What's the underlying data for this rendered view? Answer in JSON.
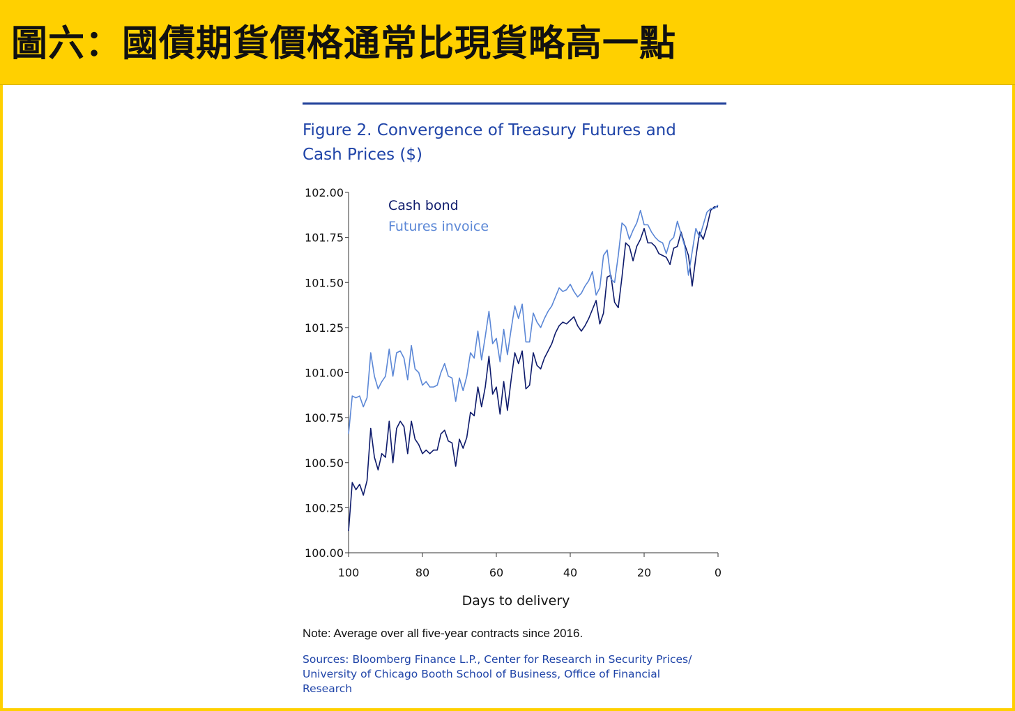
{
  "banner": {
    "title": "圖六：國債期貨價格通常比現貨略高一點"
  },
  "figure": {
    "title_line1": "Figure 2. Convergence of Treasury Futures and",
    "title_line2": "Cash Prices ($)",
    "note": "Note: Average over all five-year contracts since 2016.",
    "sources_line1": "Sources: Bloomberg Finance L.P., Center for Research in Security Prices/",
    "sources_line2": "University of Chicago Booth School of Business, Office of Financial",
    "sources_line3": "Research"
  },
  "colors": {
    "banner": "#FFD000",
    "title_blue": "#1f44a8",
    "cash_bond": "#0d1a6b",
    "futures_invoice": "#5b87d6"
  },
  "chart_data": {
    "type": "line",
    "title": "Figure 2. Convergence of Treasury Futures and Cash Prices ($)",
    "xlabel": "Days to delivery",
    "ylabel": "",
    "xlim": [
      100,
      0
    ],
    "ylim": [
      100.0,
      102.0
    ],
    "x_ticks": [
      "100",
      "80",
      "60",
      "40",
      "20",
      "0"
    ],
    "x_tick_values": [
      100,
      80,
      60,
      40,
      20,
      0
    ],
    "y_ticks": [
      "102.00",
      "101.75",
      "101.50",
      "101.25",
      "101.00",
      "100.75",
      "100.50",
      "100.25",
      "100.00"
    ],
    "y_tick_values": [
      102.0,
      101.75,
      101.5,
      101.25,
      101.0,
      100.75,
      100.5,
      100.25,
      100.0
    ],
    "legend_position": "top-left",
    "grid": false,
    "x": [
      100,
      99,
      98,
      97,
      96,
      95,
      94,
      93,
      92,
      91,
      90,
      89,
      88,
      87,
      86,
      85,
      84,
      83,
      82,
      81,
      80,
      79,
      78,
      77,
      76,
      75,
      74,
      73,
      72,
      71,
      70,
      69,
      68,
      67,
      66,
      65,
      64,
      63,
      62,
      61,
      60,
      59,
      58,
      57,
      56,
      55,
      54,
      53,
      52,
      51,
      50,
      49,
      48,
      47,
      46,
      45,
      44,
      43,
      42,
      41,
      40,
      39,
      38,
      37,
      36,
      35,
      34,
      33,
      32,
      31,
      30,
      29,
      28,
      27,
      26,
      25,
      24,
      23,
      22,
      21,
      20,
      19,
      18,
      17,
      16,
      15,
      14,
      13,
      12,
      11,
      10,
      9,
      8,
      7,
      6,
      5,
      4,
      3,
      2,
      1,
      0
    ],
    "series": [
      {
        "name": "Cash bond",
        "color": "#0d1a6b",
        "values": [
          100.12,
          100.39,
          100.35,
          100.38,
          100.32,
          100.4,
          100.69,
          100.53,
          100.46,
          100.55,
          100.53,
          100.73,
          100.5,
          100.69,
          100.73,
          100.7,
          100.55,
          100.73,
          100.63,
          100.6,
          100.55,
          100.57,
          100.55,
          100.57,
          100.57,
          100.66,
          100.68,
          100.62,
          100.61,
          100.48,
          100.63,
          100.58,
          100.64,
          100.78,
          100.76,
          100.92,
          100.81,
          100.92,
          101.09,
          100.88,
          100.92,
          100.77,
          100.95,
          100.79,
          100.96,
          101.11,
          101.05,
          101.12,
          100.91,
          100.93,
          101.11,
          101.04,
          101.02,
          101.08,
          101.12,
          101.16,
          101.22,
          101.26,
          101.28,
          101.27,
          101.29,
          101.31,
          101.26,
          101.23,
          101.26,
          101.3,
          101.35,
          101.4,
          101.27,
          101.33,
          101.53,
          101.54,
          101.39,
          101.36,
          101.53,
          101.72,
          101.7,
          101.62,
          101.7,
          101.74,
          101.8,
          101.72,
          101.72,
          101.7,
          101.66,
          101.65,
          101.64,
          101.6,
          101.69,
          101.7,
          101.78,
          101.71,
          101.65,
          101.48,
          101.64,
          101.78,
          101.74,
          101.81,
          101.9,
          101.92,
          101.92
        ]
      },
      {
        "name": "Futures invoice",
        "color": "#5b87d6",
        "values": [
          100.66,
          100.87,
          100.86,
          100.87,
          100.81,
          100.86,
          101.11,
          100.98,
          100.91,
          100.95,
          100.98,
          101.13,
          100.98,
          101.11,
          101.12,
          101.08,
          100.96,
          101.15,
          101.02,
          101.0,
          100.93,
          100.95,
          100.92,
          100.92,
          100.93,
          101.0,
          101.05,
          100.98,
          100.97,
          100.84,
          100.97,
          100.9,
          100.98,
          101.11,
          101.08,
          101.23,
          101.07,
          101.2,
          101.34,
          101.16,
          101.19,
          101.06,
          101.24,
          101.1,
          101.24,
          101.37,
          101.3,
          101.38,
          101.17,
          101.17,
          101.33,
          101.28,
          101.25,
          101.3,
          101.34,
          101.37,
          101.42,
          101.47,
          101.45,
          101.46,
          101.49,
          101.45,
          101.42,
          101.44,
          101.48,
          101.51,
          101.56,
          101.43,
          101.47,
          101.65,
          101.68,
          101.52,
          101.5,
          101.65,
          101.83,
          101.81,
          101.74,
          101.79,
          101.83,
          101.9,
          101.82,
          101.82,
          101.78,
          101.75,
          101.73,
          101.72,
          101.66,
          101.73,
          101.75,
          101.84,
          101.77,
          101.7,
          101.54,
          101.67,
          101.8,
          101.75,
          101.82,
          101.89,
          101.91,
          101.91,
          101.93
        ]
      }
    ]
  }
}
